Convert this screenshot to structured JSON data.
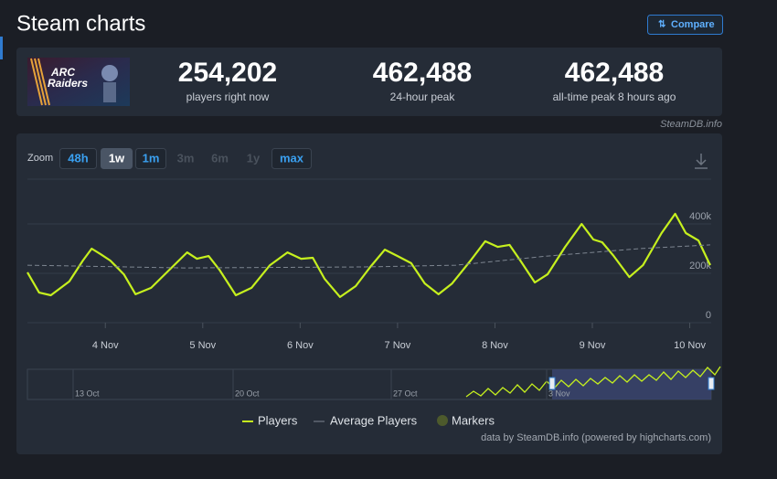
{
  "header": {
    "title": "Steam charts",
    "compare": "Compare"
  },
  "game": {
    "logo_line1": "ARC",
    "logo_line2": "Raiders"
  },
  "stats": [
    {
      "value": "254,202",
      "label": "players right now"
    },
    {
      "value": "462,488",
      "label": "24-hour peak"
    },
    {
      "value": "462,488",
      "label": "all-time peak 8 hours ago"
    }
  ],
  "credit": "SteamDB.info",
  "zoom": {
    "label": "Zoom",
    "buttons": [
      "48h",
      "1w",
      "1m",
      "3m",
      "6m",
      "1y",
      "max"
    ],
    "active": 1,
    "disabled": [
      3,
      4,
      5
    ]
  },
  "chart_data": {
    "type": "line",
    "xlim": [
      3.2,
      10.22
    ],
    "xticks": [
      {
        "value": 4,
        "label": "4 Nov"
      },
      {
        "value": 5,
        "label": "5 Nov"
      },
      {
        "value": 6,
        "label": "6 Nov"
      },
      {
        "value": 7,
        "label": "7 Nov"
      },
      {
        "value": 8,
        "label": "8 Nov"
      },
      {
        "value": 9,
        "label": "9 Nov"
      },
      {
        "value": 10,
        "label": "10 Nov"
      }
    ],
    "ylim": [
      0,
      600000
    ],
    "yticks": [
      0,
      {
        "value": 200000,
        "label": "200k"
      },
      {
        "value": 400000,
        "label": "400k"
      }
    ],
    "grid": true,
    "series": [
      {
        "name": "Players",
        "color": "#c6f01e",
        "x": [
          3.2,
          3.32,
          3.44,
          3.63,
          3.77,
          3.86,
          3.95,
          4.05,
          4.19,
          4.31,
          4.47,
          4.66,
          4.84,
          4.94,
          5.06,
          5.17,
          5.34,
          5.5,
          5.69,
          5.87,
          6.01,
          6.13,
          6.25,
          6.41,
          6.57,
          6.72,
          6.87,
          7.0,
          7.14,
          7.28,
          7.42,
          7.56,
          7.75,
          7.9,
          8.03,
          8.15,
          8.26,
          8.41,
          8.54,
          8.72,
          8.89,
          9.01,
          9.1,
          9.22,
          9.38,
          9.52,
          9.71,
          9.85,
          9.96,
          10.09,
          10.21
        ],
        "values": [
          204000,
          122000,
          111000,
          167000,
          252000,
          300000,
          278000,
          252000,
          196000,
          115000,
          141000,
          215000,
          285000,
          259000,
          270000,
          215000,
          111000,
          141000,
          233000,
          285000,
          259000,
          263000,
          178000,
          104000,
          148000,
          226000,
          296000,
          270000,
          241000,
          159000,
          115000,
          159000,
          252000,
          330000,
          307000,
          315000,
          252000,
          163000,
          196000,
          307000,
          400000,
          337000,
          326000,
          270000,
          185000,
          233000,
          363000,
          441000,
          363000,
          333000,
          233000
        ]
      },
      {
        "name": "Average Players",
        "color": "#7d8590",
        "dashed": true,
        "x": [
          3.2,
          4.8,
          6.67,
          7.6,
          8.54,
          9.48,
          10.21
        ],
        "values": [
          233000,
          222000,
          226000,
          233000,
          270000,
          300000,
          315000
        ]
      }
    ],
    "markers": {
      "name": "Markers",
      "color": "#4d5a2c"
    },
    "navigator": {
      "labels": [
        "13 Oct",
        "20 Oct",
        "27 Oct",
        "3 Nov"
      ]
    },
    "source": "data by SteamDB.info (powered by highcharts.com)"
  }
}
